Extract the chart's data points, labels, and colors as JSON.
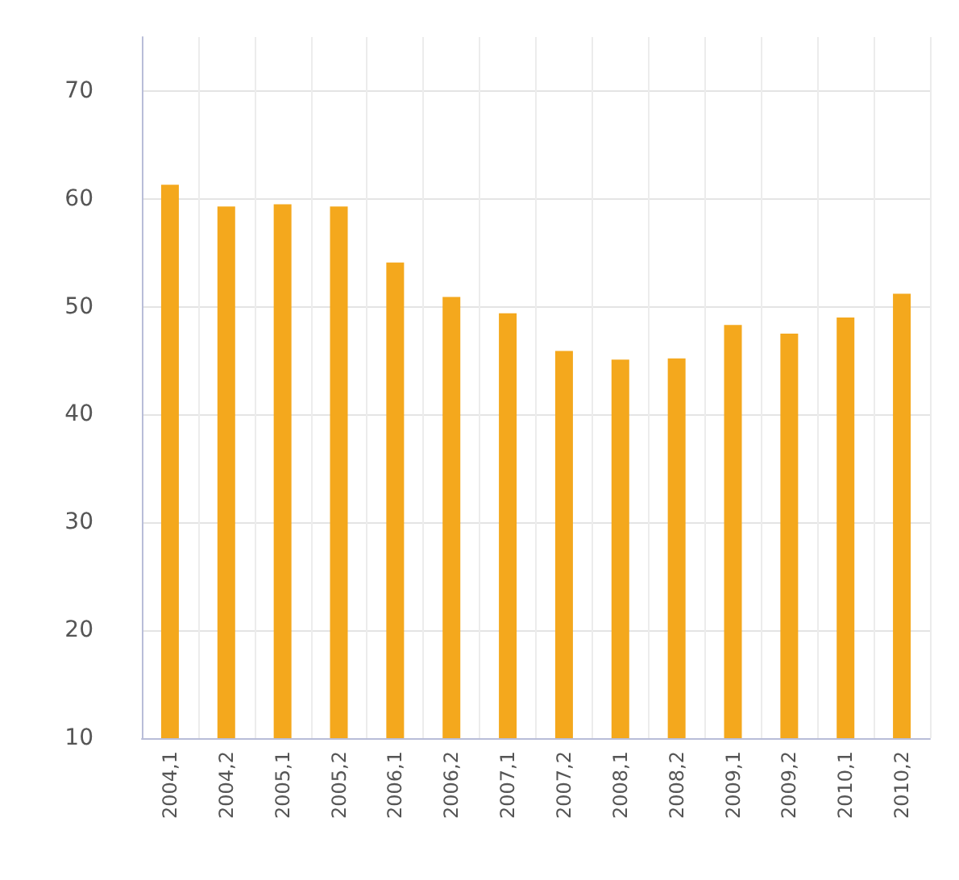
{
  "chart_data": {
    "type": "bar",
    "categories": [
      "2004,1",
      "2004,2",
      "2005,1",
      "2005,2",
      "2006,1",
      "2006,2",
      "2007,1",
      "2007,2",
      "2008,1",
      "2008,2",
      "2009,1",
      "2009,2",
      "2010,1",
      "2010,2"
    ],
    "values": [
      61.3,
      59.3,
      59.5,
      59.3,
      54.1,
      50.9,
      49.4,
      45.9,
      45.1,
      45.2,
      48.3,
      47.5,
      49.0,
      51.2
    ],
    "color": "#f4a81d",
    "ylim": [
      10,
      75
    ],
    "yticks": [
      10,
      20,
      30,
      40,
      50,
      60,
      70
    ],
    "grid": true
  }
}
